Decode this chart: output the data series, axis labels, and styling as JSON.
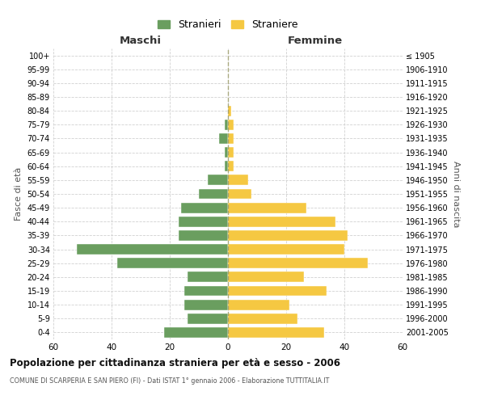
{
  "age_groups": [
    "0-4",
    "5-9",
    "10-14",
    "15-19",
    "20-24",
    "25-29",
    "30-34",
    "35-39",
    "40-44",
    "45-49",
    "50-54",
    "55-59",
    "60-64",
    "65-69",
    "70-74",
    "75-79",
    "80-84",
    "85-89",
    "90-94",
    "95-99",
    "100+"
  ],
  "birth_years": [
    "2001-2005",
    "1996-2000",
    "1991-1995",
    "1986-1990",
    "1981-1985",
    "1976-1980",
    "1971-1975",
    "1966-1970",
    "1961-1965",
    "1956-1960",
    "1951-1955",
    "1946-1950",
    "1941-1945",
    "1936-1940",
    "1931-1935",
    "1926-1930",
    "1921-1925",
    "1916-1920",
    "1911-1915",
    "1906-1910",
    "≤ 1905"
  ],
  "males": [
    22,
    14,
    15,
    15,
    14,
    38,
    52,
    17,
    17,
    16,
    10,
    7,
    1,
    1,
    3,
    1,
    0,
    0,
    0,
    0,
    0
  ],
  "females": [
    33,
    24,
    21,
    34,
    26,
    48,
    40,
    41,
    37,
    27,
    8,
    7,
    2,
    2,
    2,
    2,
    1,
    0,
    0,
    0,
    0
  ],
  "male_color": "#6a9e5f",
  "female_color": "#f5c842",
  "title": "Popolazione per cittadinanza straniera per età e sesso - 2006",
  "subtitle": "COMUNE DI SCARPERIA E SAN PIERO (FI) - Dati ISTAT 1° gennaio 2006 - Elaborazione TUTTITALIA.IT",
  "xlabel_left": "Maschi",
  "xlabel_right": "Femmine",
  "ylabel_left": "Fasce di età",
  "ylabel_right": "Anni di nascita",
  "legend_male": "Stranieri",
  "legend_female": "Straniere",
  "xlim": 60,
  "background_color": "#ffffff",
  "grid_color": "#cccccc",
  "bar_edge_color": "#ffffff",
  "centerline_color": "#999966"
}
